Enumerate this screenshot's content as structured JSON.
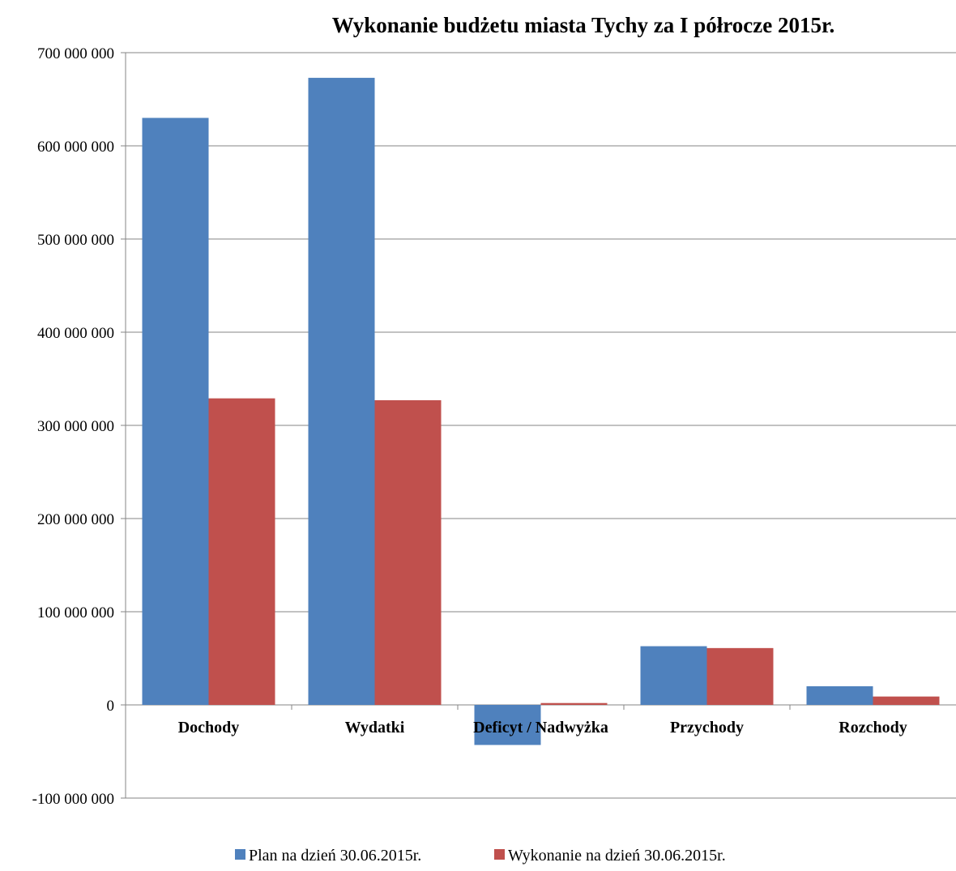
{
  "chart_data": {
    "type": "bar",
    "title": "Wykonanie budżetu miasta Tychy za I półrocze 2015r.",
    "xlabel": "",
    "ylabel": "",
    "categories": [
      "Dochody",
      "Wydatki",
      "Deficyt / Nadwyżka",
      "Przychody",
      "Rozchody"
    ],
    "series": [
      {
        "name": "Plan na dzień 30.06.2015r.",
        "color": "#4F81BD",
        "values": [
          630000000,
          673000000,
          -43000000,
          63000000,
          20000000
        ]
      },
      {
        "name": "Wykonanie na dzień 30.06.2015r.",
        "color": "#C0504D",
        "values": [
          329000000,
          327000000,
          2000000,
          61000000,
          9000000
        ]
      }
    ],
    "ylim": [
      -100000000,
      700000000
    ],
    "yticks": [
      -100000000,
      0,
      100000000,
      200000000,
      300000000,
      400000000,
      500000000,
      600000000,
      700000000
    ],
    "ytick_labels": [
      "-100 000 000",
      "0",
      "100 000 000",
      "200 000 000",
      "300 000 000",
      "400 000 000",
      "500 000 000",
      "600 000 000",
      "700 000 000"
    ],
    "grid": true,
    "legend_position": "bottom"
  }
}
